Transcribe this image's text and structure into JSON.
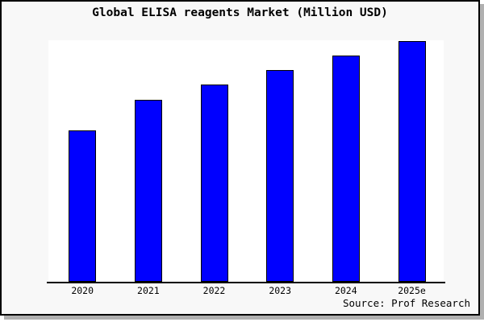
{
  "chart_data": {
    "type": "bar",
    "title": "Global ELISA reagents Market (Million USD)",
    "categories": [
      "2020",
      "2021",
      "2022",
      "2023",
      "2024",
      "2025e"
    ],
    "values": [
      63,
      75.5,
      82,
      88,
      94,
      100
    ],
    "y_axis": "unlabeled - values are relative bar heights (tallest bar = 100)",
    "xlabel": "",
    "ylabel": "",
    "ylim": [
      0,
      100
    ],
    "grid": false,
    "legend": false,
    "source": "Source: Prof Research",
    "colors": {
      "bar_fill": "#0000ff",
      "bar_border": "#000000",
      "figure_background": "#f8f8f8",
      "plot_background": "#ffffff",
      "axis": "#000000",
      "shadow": "#b0b0b0",
      "text": "#000000"
    }
  }
}
